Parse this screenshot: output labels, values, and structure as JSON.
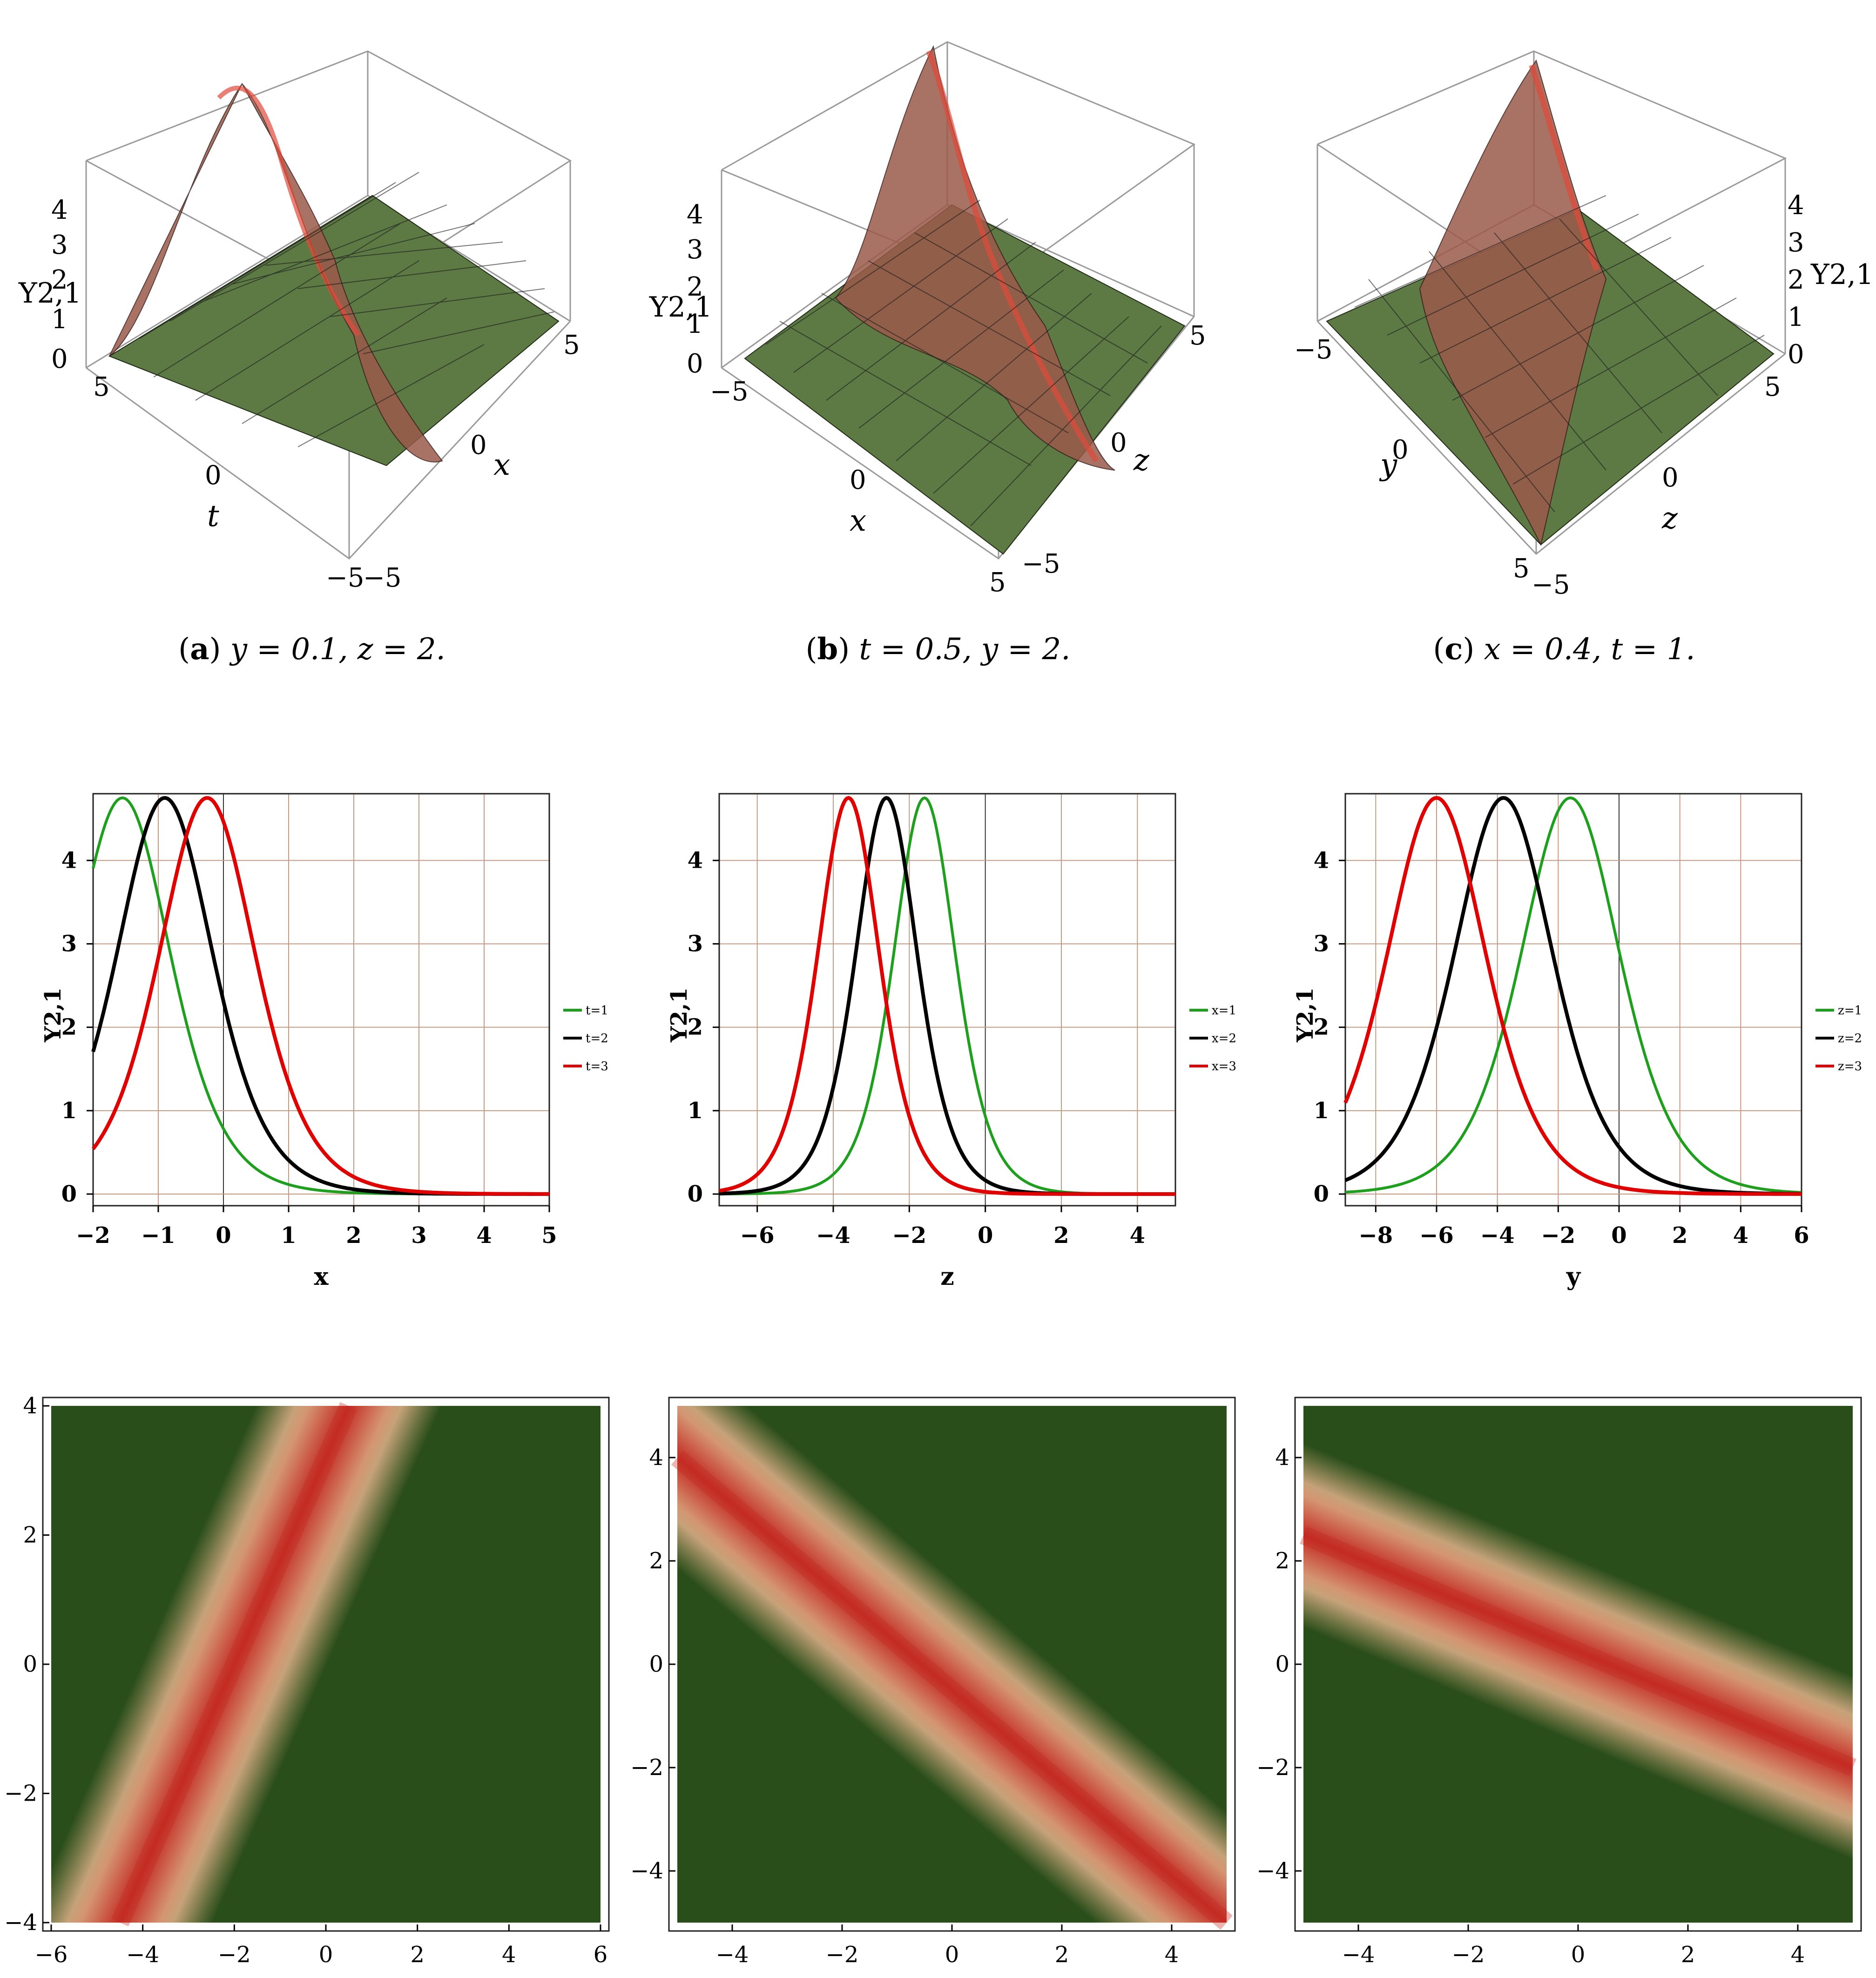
{
  "figure": {
    "row1": [
      {
        "id": "a",
        "caption": {
          "tag": "a",
          "text": "y = 0.1, z = 2."
        },
        "axes": {
          "front_label": "t",
          "right_label": "x",
          "z_label": "Υ2,1"
        },
        "ticks": {
          "front": [
            "5",
            "0",
            "−5"
          ],
          "right": [
            "−5",
            "0",
            "5"
          ],
          "z": [
            "4",
            "3",
            "2",
            "1",
            "0"
          ]
        }
      },
      {
        "id": "b",
        "caption": {
          "tag": "b",
          "text": "t = 0.5, y = 2."
        },
        "axes": {
          "front_label": "x",
          "right_label": "z",
          "z_label": "Υ2,1"
        },
        "ticks": {
          "front": [
            "−5",
            "0",
            "5"
          ],
          "right": [
            "−5",
            "0",
            "5"
          ],
          "z": [
            "4",
            "3",
            "2",
            "1",
            "0"
          ]
        }
      },
      {
        "id": "c",
        "caption": {
          "tag": "c",
          "text": "x = 0.4, t = 1."
        },
        "axes": {
          "front_label": "y",
          "right_label": "z",
          "z_label": "Υ2,1"
        },
        "ticks": {
          "front": [
            "−5",
            "0",
            "5"
          ],
          "right": [
            "−5",
            "0",
            "5"
          ],
          "z": [
            "4",
            "3",
            "2",
            "1",
            "0"
          ]
        }
      }
    ]
  },
  "chart_data": [
    {
      "type": "line",
      "id": "line-x",
      "xlabel": "x",
      "ylabel": "Υ2,1",
      "xlim": [
        -2,
        5
      ],
      "ylim": [
        0,
        4.8
      ],
      "xticks": [
        "−2",
        "−1",
        "0",
        "1",
        "2",
        "3",
        "4",
        "5"
      ],
      "yticks": [
        "0",
        "1",
        "2",
        "3",
        "4"
      ],
      "grid": true,
      "legend_position": "right",
      "series": [
        {
          "name": "t=1",
          "color": "#1ea01e",
          "peak": 4.75,
          "center": -1.55,
          "width": 1.0
        },
        {
          "name": "t=2",
          "color": "#000000",
          "peak": 4.75,
          "center": -0.9,
          "width": 1.0
        },
        {
          "name": "t=3",
          "color": "#e00000",
          "peak": 4.75,
          "center": -0.25,
          "width": 1.0
        }
      ]
    },
    {
      "type": "line",
      "id": "line-z",
      "xlabel": "z",
      "ylabel": "Υ2,1",
      "xlim": [
        -7,
        5
      ],
      "ylim": [
        0,
        4.8
      ],
      "xticks": [
        "−6",
        "−4",
        "−2",
        "0",
        "2",
        "4"
      ],
      "yticks": [
        "0",
        "1",
        "2",
        "3",
        "4"
      ],
      "grid": true,
      "legend_position": "right",
      "series": [
        {
          "name": "x=1",
          "color": "#1ea01e",
          "peak": 4.75,
          "center": -1.6,
          "width": 1.1
        },
        {
          "name": "x=2",
          "color": "#000000",
          "peak": 4.75,
          "center": -2.6,
          "width": 1.1
        },
        {
          "name": "x=3",
          "color": "#e00000",
          "peak": 4.75,
          "center": -3.6,
          "width": 1.1
        }
      ]
    },
    {
      "type": "line",
      "id": "line-y",
      "xlabel": "y",
      "ylabel": "Υ2,1",
      "xlim": [
        -9,
        6
      ],
      "ylim": [
        0,
        4.8
      ],
      "xticks": [
        "−8",
        "−6",
        "−4",
        "−2",
        "0",
        "2",
        "4",
        "6"
      ],
      "yticks": [
        "0",
        "1",
        "2",
        "3",
        "4"
      ],
      "grid": true,
      "legend_position": "right",
      "series": [
        {
          "name": "z=1",
          "color": "#1ea01e",
          "peak": 4.75,
          "center": -1.6,
          "width": 2.2
        },
        {
          "name": "z=2",
          "color": "#000000",
          "peak": 4.75,
          "center": -3.8,
          "width": 2.2
        },
        {
          "name": "z=3",
          "color": "#e00000",
          "peak": 4.75,
          "center": -6.0,
          "width": 2.2
        }
      ]
    },
    {
      "type": "heatmap",
      "id": "density-1",
      "xlim": [
        -6,
        6
      ],
      "ylim": [
        -4,
        4
      ],
      "xticks": [
        "−6",
        "−4",
        "−2",
        "0",
        "2",
        "4",
        "6"
      ],
      "yticks": [
        "−4",
        "−2",
        "0",
        "2",
        "4"
      ],
      "band": {
        "x_at_ymin": -4.5,
        "x_at_ymax": 0.5,
        "colors": [
          "#2a4e1a",
          "#d8ac84",
          "#c42b22"
        ]
      }
    },
    {
      "type": "heatmap",
      "id": "density-2",
      "xlim": [
        -5,
        5
      ],
      "ylim": [
        -5,
        5
      ],
      "xticks": [
        "−4",
        "−2",
        "0",
        "2",
        "4"
      ],
      "yticks": [
        "−4",
        "−2",
        "0",
        "2",
        "4"
      ],
      "band": {
        "y_at_xmin": 4.0,
        "y_at_xmax": -5.0,
        "colors": [
          "#2a4e1a",
          "#d8ac84",
          "#c42b22"
        ]
      }
    },
    {
      "type": "heatmap",
      "id": "density-3",
      "xlim": [
        -5,
        5
      ],
      "ylim": [
        -5,
        5
      ],
      "xticks": [
        "−4",
        "−2",
        "0",
        "2",
        "4"
      ],
      "yticks": [
        "−4",
        "−2",
        "0",
        "2",
        "4"
      ],
      "band": {
        "y_at_xmin": 2.5,
        "y_at_xmax": -2.0,
        "colors": [
          "#2a4e1a",
          "#d8ac84",
          "#c42b22"
        ]
      }
    }
  ]
}
